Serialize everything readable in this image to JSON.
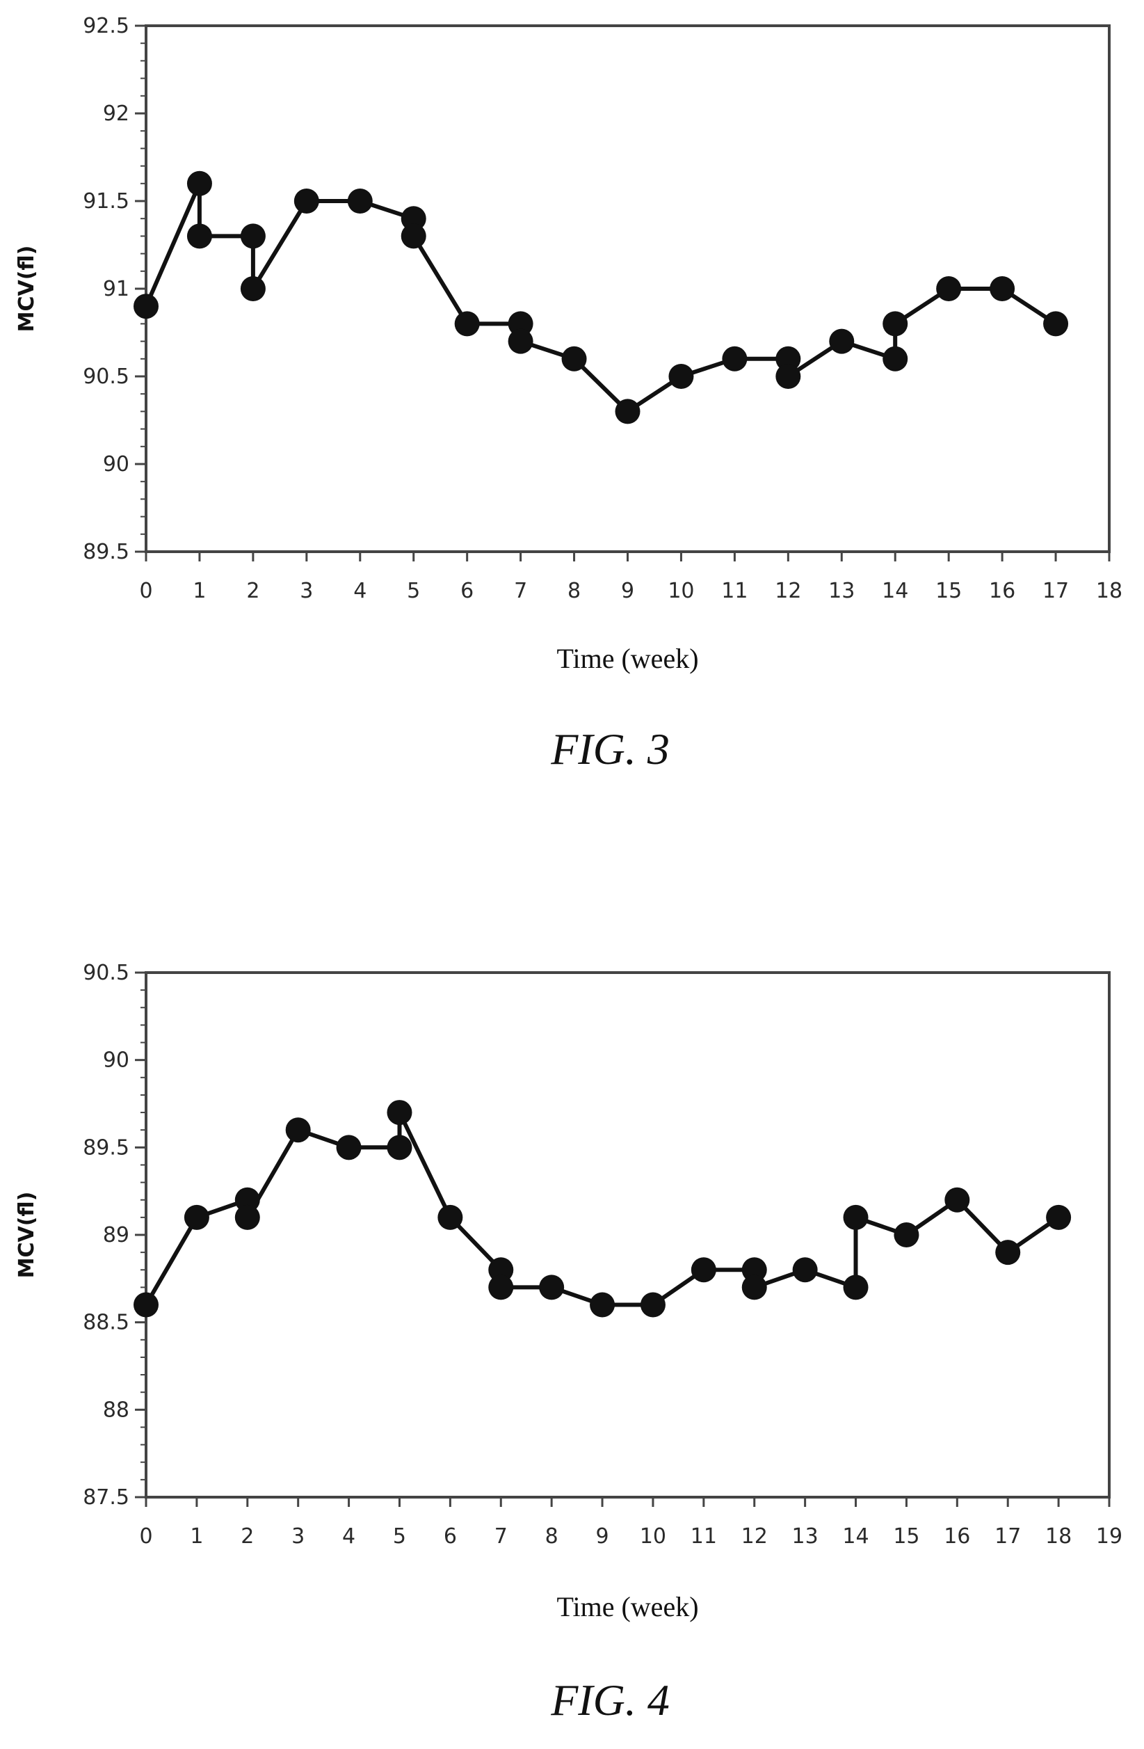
{
  "chart_data": [
    {
      "type": "line",
      "caption": "FIG. 3",
      "xlabel": "Time (week)",
      "ylabel": "MCV(fl)",
      "xlim": [
        0,
        18
      ],
      "ylim": [
        89.5,
        92.5
      ],
      "x_ticks": [
        0,
        1,
        2,
        3,
        4,
        5,
        6,
        7,
        8,
        9,
        10,
        11,
        12,
        13,
        14,
        15,
        16,
        17,
        18
      ],
      "y_ticks": [
        89.5,
        90,
        90.5,
        91,
        91.5,
        92,
        92.5
      ],
      "y_tick_labels": [
        "89.5",
        "90",
        "90.5",
        "91",
        "91.5",
        "92",
        "92.5"
      ],
      "grid": false,
      "series": [
        {
          "points": [
            [
              0,
              90.9
            ],
            [
              1,
              91.6
            ],
            [
              1,
              91.3
            ],
            [
              2,
              91.3
            ],
            [
              2,
              91.0
            ],
            [
              3,
              91.5
            ],
            [
              4,
              91.5
            ],
            [
              5,
              91.4
            ],
            [
              5,
              91.3
            ],
            [
              6,
              90.8
            ],
            [
              7,
              90.8
            ],
            [
              7,
              90.7
            ],
            [
              8,
              90.6
            ],
            [
              9,
              90.3
            ],
            [
              10,
              90.5
            ],
            [
              11,
              90.6
            ],
            [
              12,
              90.6
            ],
            [
              12,
              90.5
            ],
            [
              13,
              90.7
            ],
            [
              14,
              90.6
            ],
            [
              14,
              90.8
            ],
            [
              15,
              91.0
            ],
            [
              16,
              91.0
            ],
            [
              17,
              90.8
            ]
          ]
        }
      ]
    },
    {
      "type": "line",
      "caption": "FIG. 4",
      "xlabel": "Time (week)",
      "ylabel": "MCV(fl)",
      "xlim": [
        0,
        19
      ],
      "ylim": [
        87.5,
        90.5
      ],
      "x_ticks": [
        0,
        1,
        2,
        3,
        4,
        5,
        6,
        7,
        8,
        9,
        10,
        11,
        12,
        13,
        14,
        15,
        16,
        17,
        18,
        19
      ],
      "y_ticks": [
        87.5,
        88,
        88.5,
        89,
        89.5,
        90,
        90.5
      ],
      "y_tick_labels": [
        "87.5",
        "88",
        "88.5",
        "89",
        "89.5",
        "90",
        "90.5"
      ],
      "grid": false,
      "series": [
        {
          "points": [
            [
              0,
              88.6
            ],
            [
              1,
              89.1
            ],
            [
              2,
              89.2
            ],
            [
              2,
              89.1
            ],
            [
              3,
              89.6
            ],
            [
              4,
              89.5
            ],
            [
              5,
              89.5
            ],
            [
              5,
              89.7
            ],
            [
              6,
              89.1
            ],
            [
              7,
              88.8
            ],
            [
              7,
              88.7
            ],
            [
              8,
              88.7
            ],
            [
              9,
              88.6
            ],
            [
              10,
              88.6
            ],
            [
              11,
              88.8
            ],
            [
              12,
              88.8
            ],
            [
              12,
              88.7
            ],
            [
              13,
              88.8
            ],
            [
              14,
              88.7
            ],
            [
              14,
              89.1
            ],
            [
              15,
              89.0
            ],
            [
              16,
              89.2
            ],
            [
              17,
              88.9
            ],
            [
              18,
              89.1
            ]
          ]
        }
      ]
    }
  ]
}
